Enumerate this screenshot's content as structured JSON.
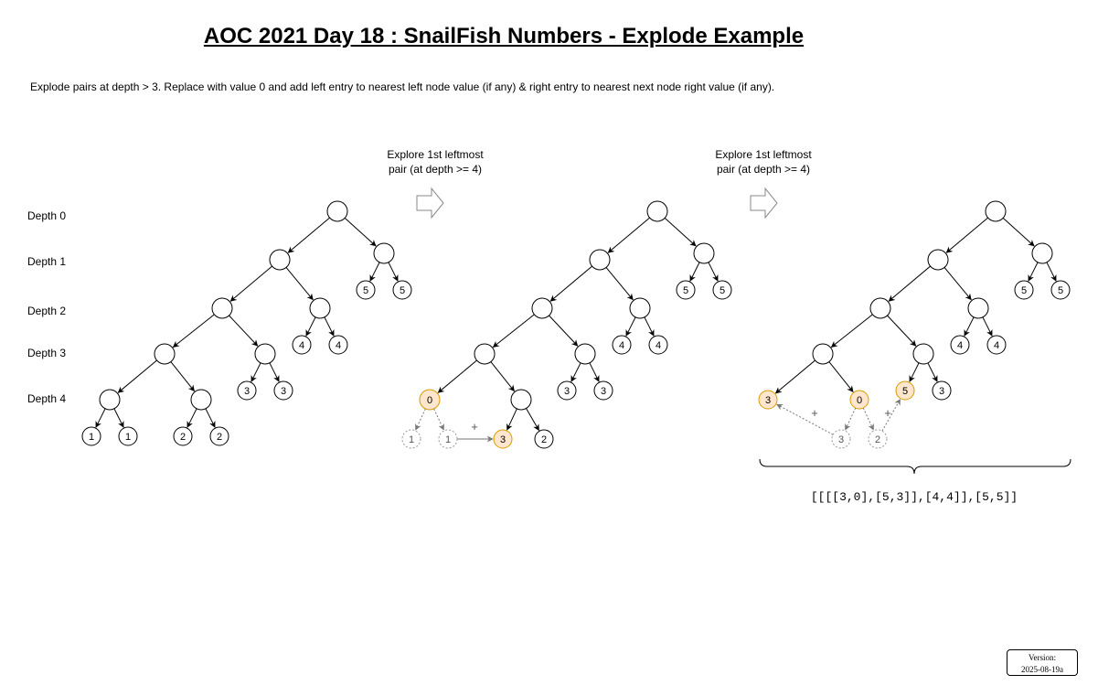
{
  "title": "AOC 2021 Day 18 : SnailFish Numbers - Explode Example",
  "description": "Explode pairs at depth > 3.   Replace with value 0 and add left entry to nearest left node value (if any) & right entry to nearest next node right value (if any).",
  "depth_labels": [
    "Depth 0",
    "Depth 1",
    "Depth 2",
    "Depth 3",
    "Depth 4"
  ],
  "step_caption_1": {
    "line1": "Explore 1st leftmost",
    "line2": "pair (at depth >= 4)"
  },
  "step_caption_2": {
    "line1": "Explore 1st leftmost",
    "line2": "pair (at depth >= 4)"
  },
  "plus_sign": "+",
  "result": "[[[[3,0],[5,3]],[4,4]],[5,5]]",
  "version": {
    "label": "Version:",
    "value": "2025-08-19a"
  },
  "colors": {
    "highlight_fill": "#ffe6cc",
    "highlight_stroke": "#d79b00",
    "ghost_stroke": "#999999",
    "arrow_dotted": "#777777"
  },
  "trees": [
    {
      "nodes": [
        {
          "id": "a1",
          "label": ""
        },
        {
          "id": "b1",
          "label": ""
        },
        {
          "id": "c1",
          "label": ""
        },
        {
          "id": "d1",
          "label": "5"
        },
        {
          "id": "e1",
          "label": "5"
        },
        {
          "id": "f1",
          "label": ""
        },
        {
          "id": "g1",
          "label": ""
        },
        {
          "id": "h1",
          "label": "4"
        },
        {
          "id": "i1",
          "label": "4"
        },
        {
          "id": "j1",
          "label": ""
        },
        {
          "id": "k1",
          "label": ""
        },
        {
          "id": "l1",
          "label": "3"
        },
        {
          "id": "m1",
          "label": "3"
        },
        {
          "id": "n1",
          "label": ""
        },
        {
          "id": "o1",
          "label": ""
        },
        {
          "id": "p1",
          "label": "1"
        },
        {
          "id": "q1",
          "label": "1"
        },
        {
          "id": "r1",
          "label": "2"
        },
        {
          "id": "s1",
          "label": "2"
        }
      ]
    },
    {
      "nodes": [
        {
          "id": "a2",
          "label": ""
        },
        {
          "id": "b2",
          "label": ""
        },
        {
          "id": "c2",
          "label": ""
        },
        {
          "id": "d2",
          "label": "5"
        },
        {
          "id": "e2",
          "label": "5"
        },
        {
          "id": "f2",
          "label": ""
        },
        {
          "id": "g2",
          "label": ""
        },
        {
          "id": "h2",
          "label": "4"
        },
        {
          "id": "i2",
          "label": "4"
        },
        {
          "id": "j2",
          "label": ""
        },
        {
          "id": "k2",
          "label": ""
        },
        {
          "id": "l2",
          "label": "3"
        },
        {
          "id": "m2",
          "label": "3"
        },
        {
          "id": "n2",
          "label": "0",
          "style": "highlight"
        },
        {
          "id": "o2",
          "label": ""
        },
        {
          "id": "p2",
          "label": "1",
          "style": "ghost"
        },
        {
          "id": "q2",
          "label": "1",
          "style": "ghost"
        },
        {
          "id": "r2",
          "label": "3",
          "style": "highlight"
        },
        {
          "id": "s2",
          "label": "2"
        }
      ]
    },
    {
      "nodes": [
        {
          "id": "a3",
          "label": ""
        },
        {
          "id": "b3",
          "label": ""
        },
        {
          "id": "c3",
          "label": ""
        },
        {
          "id": "d3",
          "label": "5"
        },
        {
          "id": "e3",
          "label": "5"
        },
        {
          "id": "f3",
          "label": ""
        },
        {
          "id": "g3",
          "label": ""
        },
        {
          "id": "h3",
          "label": "4"
        },
        {
          "id": "i3",
          "label": "4"
        },
        {
          "id": "j3",
          "label": ""
        },
        {
          "id": "k3",
          "label": ""
        },
        {
          "id": "l3",
          "label": "3",
          "style": "highlight"
        },
        {
          "id": "m3",
          "label": "0",
          "style": "highlight"
        },
        {
          "id": "n3",
          "label": "5",
          "style": "highlight"
        },
        {
          "id": "o3",
          "label": "3"
        },
        {
          "id": "p3",
          "label": "3",
          "style": "ghost"
        },
        {
          "id": "q3",
          "label": "2",
          "style": "ghost"
        }
      ]
    }
  ]
}
